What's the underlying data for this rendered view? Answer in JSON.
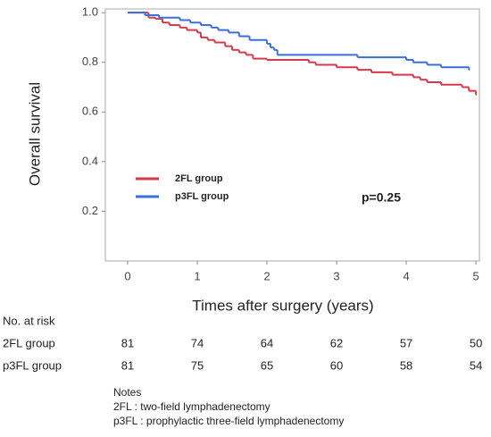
{
  "chart_data": {
    "type": "step",
    "ylabel": "Overall survival",
    "xlabel": "Times after surgery (years)",
    "annotation": "p=0.25",
    "xlim": [
      -0.32,
      5.05
    ],
    "ylim": [
      0,
      1.015
    ],
    "xticks": [
      0,
      1,
      2,
      3,
      4,
      5
    ],
    "yticks": [
      {
        "value": 1.0,
        "label": "1.0"
      },
      {
        "value": 0.8,
        "label": "0.8"
      },
      {
        "value": 0.6,
        "label": "0.6"
      },
      {
        "value": 0.4,
        "label": "0.4"
      },
      {
        "value": 0.2,
        "label": "0.2"
      }
    ],
    "legend": "upper-left",
    "series": [
      {
        "name": "2FL group",
        "color": "#d63a4a",
        "x": [
          0,
          0.3,
          0.4,
          0.5,
          0.6,
          0.75,
          0.85,
          1.0,
          1.05,
          1.15,
          1.25,
          1.4,
          1.5,
          1.6,
          1.7,
          1.8,
          2.0,
          2.6,
          2.7,
          3.0,
          3.3,
          3.5,
          3.8,
          4.1,
          4.2,
          4.3,
          4.5,
          4.8,
          4.9,
          5.0
        ],
        "values": [
          1.0,
          0.98,
          0.975,
          0.96,
          0.95,
          0.94,
          0.93,
          0.92,
          0.9,
          0.89,
          0.88,
          0.865,
          0.85,
          0.84,
          0.83,
          0.815,
          0.81,
          0.8,
          0.79,
          0.78,
          0.77,
          0.76,
          0.75,
          0.74,
          0.73,
          0.72,
          0.71,
          0.7,
          0.685,
          0.67
        ]
      },
      {
        "name": "p3FL group",
        "color": "#3a6fd6",
        "x": [
          0,
          0.25,
          0.45,
          0.75,
          0.9,
          1.05,
          1.2,
          1.3,
          1.45,
          1.6,
          1.75,
          2.0,
          2.05,
          2.1,
          2.15,
          3.3,
          4.0,
          4.1,
          4.3,
          4.5,
          4.9
        ],
        "values": [
          1.0,
          0.99,
          0.98,
          0.97,
          0.96,
          0.95,
          0.94,
          0.93,
          0.92,
          0.905,
          0.89,
          0.875,
          0.86,
          0.85,
          0.83,
          0.82,
          0.81,
          0.8,
          0.79,
          0.78,
          0.77
        ]
      }
    ]
  },
  "risk_table": {
    "title": "No. at risk",
    "rows": [
      {
        "label": "2FL group",
        "values": [
          81,
          74,
          64,
          62,
          57,
          50
        ]
      },
      {
        "label": "p3FL group",
        "values": [
          81,
          75,
          65,
          60,
          58,
          54
        ]
      }
    ]
  },
  "notes": {
    "title": "Notes",
    "lines": [
      "2FL : two-field lymphadenectomy",
      "p3FL : prophylactic three-field lymphadenectomy"
    ]
  }
}
